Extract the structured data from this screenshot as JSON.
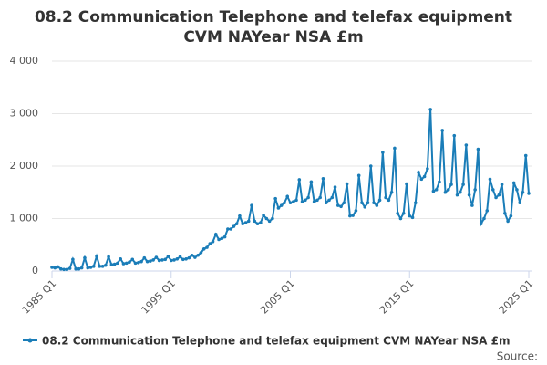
{
  "chart_data": {
    "type": "line",
    "title": "08.2 Communication Telephone and telefax equipment CVM NAYear NSA £m",
    "source": "Source:",
    "categories": [
      "1985 Q1",
      null,
      null,
      null,
      null,
      null,
      null,
      null,
      null,
      null,
      null,
      null,
      null,
      null,
      null,
      null,
      null,
      null,
      null,
      null,
      null,
      null,
      null,
      null,
      null,
      null,
      null,
      null,
      null,
      null,
      null,
      null,
      null,
      null,
      null,
      null,
      null,
      null,
      null,
      null,
      "1995 Q1",
      null,
      null,
      null,
      null,
      null,
      null,
      null,
      null,
      null,
      null,
      null,
      null,
      null,
      null,
      null,
      null,
      null,
      null,
      null,
      null,
      null,
      null,
      null,
      null,
      null,
      null,
      null,
      null,
      null,
      null,
      null,
      null,
      null,
      null,
      null,
      null,
      null,
      null,
      null,
      "2005 Q1",
      null,
      null,
      null,
      null,
      null,
      null,
      null,
      null,
      null,
      null,
      null,
      null,
      null,
      null,
      null,
      null,
      null,
      null,
      null,
      null,
      null,
      null,
      null,
      null,
      null,
      null,
      null,
      null,
      null,
      null,
      null,
      null,
      null,
      null,
      null,
      null,
      null,
      null,
      null,
      "2015 Q1",
      null,
      null,
      null,
      null,
      null,
      null,
      null,
      null,
      null,
      null,
      null,
      null,
      null,
      null,
      null,
      null,
      null,
      null,
      null,
      null,
      null,
      null,
      null,
      null,
      null,
      null,
      null,
      null,
      null,
      null,
      null,
      null,
      null,
      null,
      null,
      null,
      null,
      null,
      null,
      "2025 Q1"
    ],
    "series": [
      {
        "name": "08.2 Communication Telephone and telefax equipment CVM NAYear NSA £m",
        "color": "#1a7db8",
        "values": [
          70,
          60,
          80,
          40,
          30,
          30,
          50,
          220,
          40,
          40,
          60,
          250,
          60,
          70,
          90,
          280,
          90,
          90,
          110,
          270,
          120,
          130,
          150,
          230,
          140,
          150,
          170,
          220,
          150,
          160,
          180,
          250,
          180,
          190,
          210,
          260,
          200,
          210,
          220,
          280,
          200,
          210,
          230,
          270,
          220,
          230,
          250,
          300,
          260,
          300,
          350,
          420,
          450,
          520,
          560,
          700,
          600,
          620,
          650,
          800,
          800,
          850,
          900,
          1050,
          900,
          920,
          950,
          1250,
          950,
          900,
          920,
          1060,
          1000,
          950,
          1000,
          1380,
          1200,
          1250,
          1300,
          1420,
          1300,
          1320,
          1350,
          1740,
          1320,
          1350,
          1400,
          1700,
          1320,
          1350,
          1400,
          1760,
          1300,
          1350,
          1400,
          1600,
          1250,
          1230,
          1300,
          1660,
          1050,
          1060,
          1150,
          1820,
          1300,
          1220,
          1300,
          2000,
          1300,
          1250,
          1350,
          2260,
          1400,
          1350,
          1500,
          2340,
          1100,
          1000,
          1100,
          1660,
          1050,
          1020,
          1300,
          1880,
          1750,
          1800,
          1950,
          3080,
          1520,
          1550,
          1700,
          2680,
          1500,
          1550,
          1650,
          2580,
          1450,
          1500,
          1650,
          2400,
          1450,
          1250,
          1550,
          2320,
          900,
          1000,
          1150,
          1750,
          1550,
          1400,
          1450,
          1650,
          1100,
          950,
          1050,
          1680,
          1550,
          1300,
          1500,
          2200,
          1480
        ]
      }
    ],
    "ylim": [
      0,
      4000
    ],
    "yticks": [
      0,
      {
        "value": 1000,
        "label": "1 000"
      },
      {
        "value": 2000,
        "label": "2 000"
      },
      {
        "value": 3000,
        "label": "3 000"
      },
      {
        "value": 4000,
        "label": "4 000"
      }
    ],
    "grid": true
  }
}
